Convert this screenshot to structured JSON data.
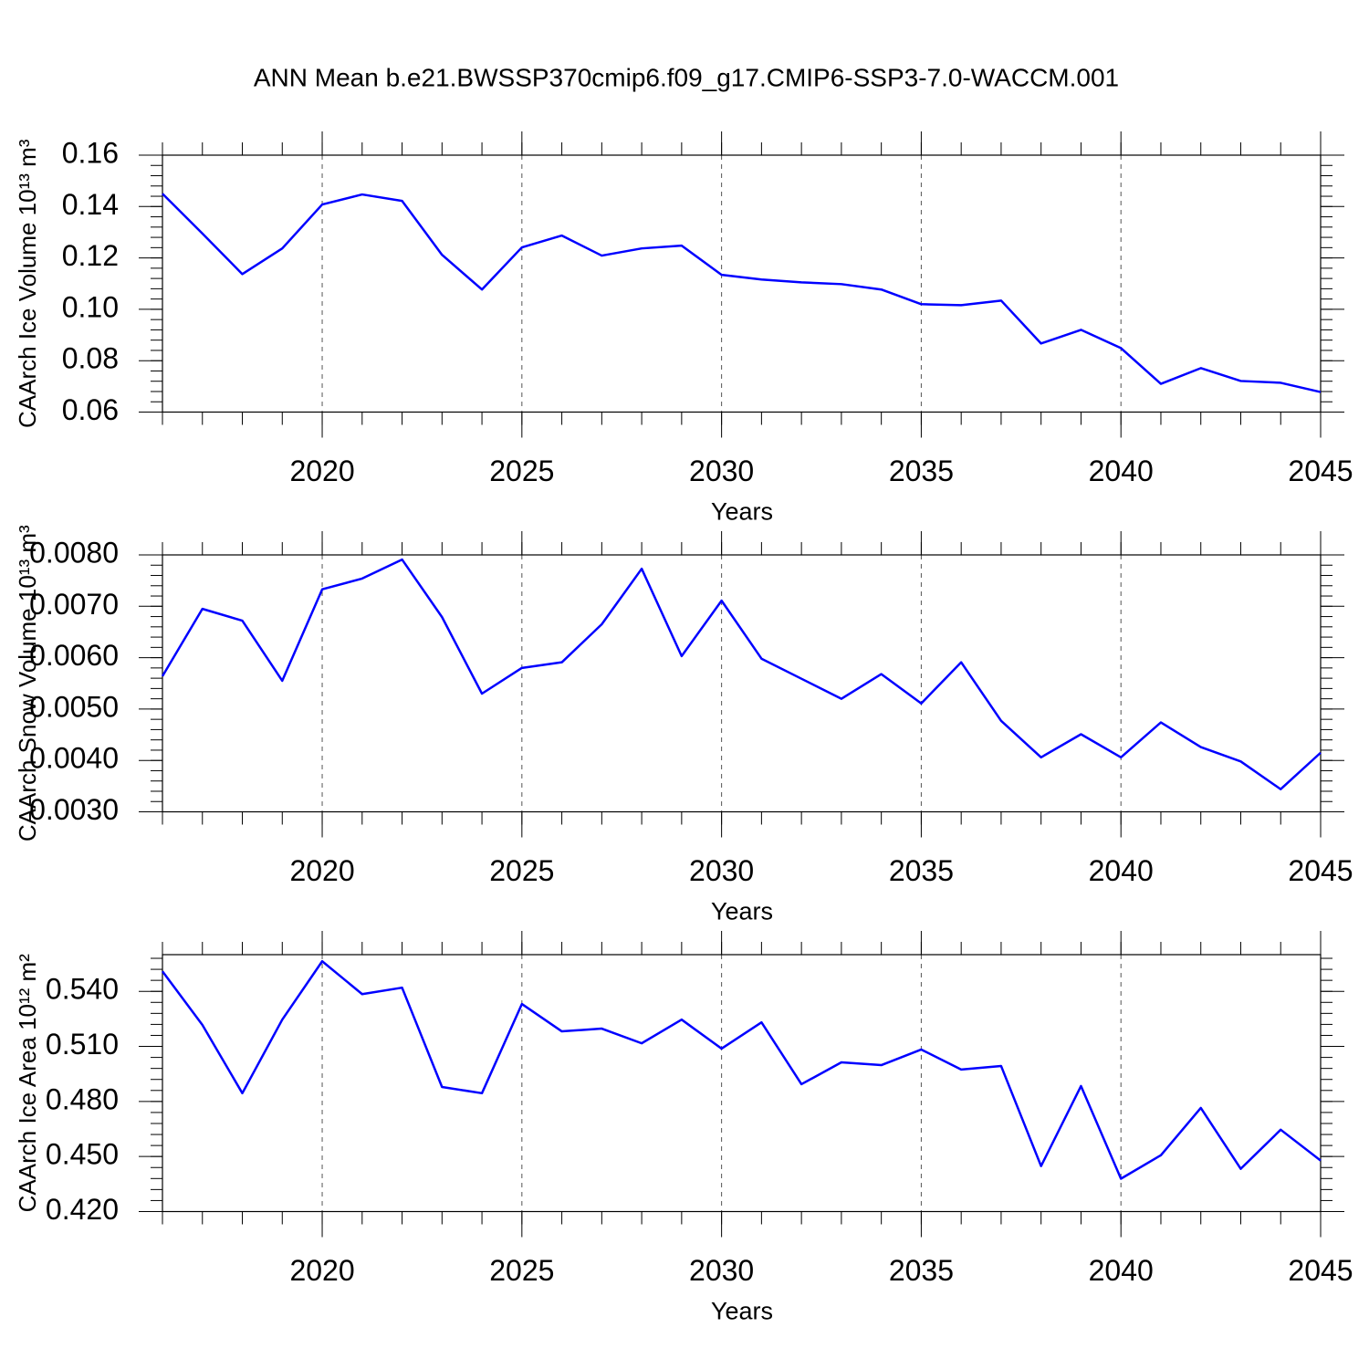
{
  "title": "ANN Mean b.e21.BWSSP370cmip6.f09_g17.CMIP6-SSP3-7.0-WACCM.001",
  "chart_data": [
    {
      "type": "line",
      "ylabel": "CAArch Ice Volume 10¹³ m³",
      "xlabel": "Years",
      "x": [
        2016,
        2017,
        2018,
        2019,
        2020,
        2021,
        2022,
        2023,
        2024,
        2025,
        2026,
        2027,
        2028,
        2029,
        2030,
        2031,
        2032,
        2033,
        2034,
        2035,
        2036,
        2037,
        2038,
        2039,
        2040,
        2041,
        2042,
        2043,
        2044,
        2045
      ],
      "series": [
        {
          "color": "#0000ff",
          "values": [
            0.145,
            0.1295,
            0.1137,
            0.1237,
            0.1408,
            0.1447,
            0.1422,
            0.1212,
            0.1077,
            0.1241,
            0.1287,
            0.1209,
            0.1237,
            0.1248,
            0.1134,
            0.1116,
            0.1105,
            0.1098,
            0.1077,
            0.102,
            0.1016,
            0.1034,
            0.0867,
            0.092,
            0.0849,
            0.071,
            0.0771,
            0.0721,
            0.0714,
            0.0678
          ]
        }
      ],
      "xlim": [
        2016,
        2045
      ],
      "xticks": [
        2020,
        2025,
        2030,
        2035,
        2040,
        2045
      ],
      "ylim": [
        0.06,
        0.16
      ],
      "yticks": [
        0.06,
        0.08,
        {
          "value": 0.1,
          "label": "0.10"
        },
        0.12,
        0.14,
        0.16
      ],
      "grid": true
    },
    {
      "type": "line",
      "ylabel": "CAArch Snow Volume 10¹³ m³",
      "xlabel": "Years",
      "x": [
        2016,
        2017,
        2018,
        2019,
        2020,
        2021,
        2022,
        2023,
        2024,
        2025,
        2026,
        2027,
        2028,
        2029,
        2030,
        2031,
        2032,
        2033,
        2034,
        2035,
        2036,
        2037,
        2038,
        2039,
        2040,
        2041,
        2042,
        2043,
        2044,
        2045
      ],
      "series": [
        {
          "color": "#0000ff",
          "values": [
            0.00564,
            0.00695,
            0.00672,
            0.00555,
            0.00733,
            0.00754,
            0.00791,
            0.00679,
            0.0053,
            0.0058,
            0.00591,
            0.00665,
            0.00773,
            0.00603,
            0.00711,
            0.00598,
            0.00559,
            0.0052,
            0.00568,
            0.00511,
            0.00591,
            0.00477,
            0.00406,
            0.00451,
            0.00406,
            0.00474,
            0.00426,
            0.00398,
            0.00344,
            0.00415
          ]
        }
      ],
      "xlim": [
        2016,
        2045
      ],
      "xticks": [
        2020,
        2025,
        2030,
        2035,
        2040,
        2045
      ],
      "ylim": [
        0.003,
        0.008
      ],
      "yticks": [
        {
          "value": 0.003,
          "label": "0.0030"
        },
        {
          "value": 0.004,
          "label": "0.0040"
        },
        {
          "value": 0.005,
          "label": "0.0050"
        },
        {
          "value": 0.006,
          "label": "0.0060"
        },
        {
          "value": 0.007,
          "label": "0.0070"
        },
        {
          "value": 0.008,
          "label": "0.0080"
        }
      ],
      "grid": true
    },
    {
      "type": "line",
      "ylabel": "CAArch Ice Area 10¹² m²",
      "xlabel": "Years",
      "x": [
        2016,
        2017,
        2018,
        2019,
        2020,
        2021,
        2022,
        2023,
        2024,
        2025,
        2026,
        2027,
        2028,
        2029,
        2030,
        2031,
        2032,
        2033,
        2034,
        2035,
        2036,
        2037,
        2038,
        2039,
        2040,
        2041,
        2042,
        2043,
        2044,
        2045
      ],
      "series": [
        {
          "color": "#0000ff",
          "values": [
            0.5509,
            0.5217,
            0.4845,
            0.5246,
            0.5564,
            0.5385,
            0.542,
            0.4879,
            0.4845,
            0.5331,
            0.5182,
            0.5197,
            0.5117,
            0.5246,
            0.5088,
            0.5231,
            0.4894,
            0.5013,
            0.4998,
            0.5083,
            0.4974,
            0.4993,
            0.4448,
            0.4884,
            0.4379,
            0.4507,
            0.4765,
            0.4433,
            0.4646,
            0.4478
          ]
        }
      ],
      "xlim": [
        2016,
        2045
      ],
      "xticks": [
        2020,
        2025,
        2030,
        2035,
        2040,
        2045
      ],
      "ylim": [
        0.42,
        0.56
      ],
      "yticks": [
        {
          "value": 0.42,
          "label": "0.420"
        },
        {
          "value": 0.45,
          "label": "0.450"
        },
        {
          "value": 0.48,
          "label": "0.480"
        },
        {
          "value": 0.51,
          "label": "0.510"
        },
        {
          "value": 0.54,
          "label": "0.540"
        }
      ],
      "grid": true
    }
  ]
}
